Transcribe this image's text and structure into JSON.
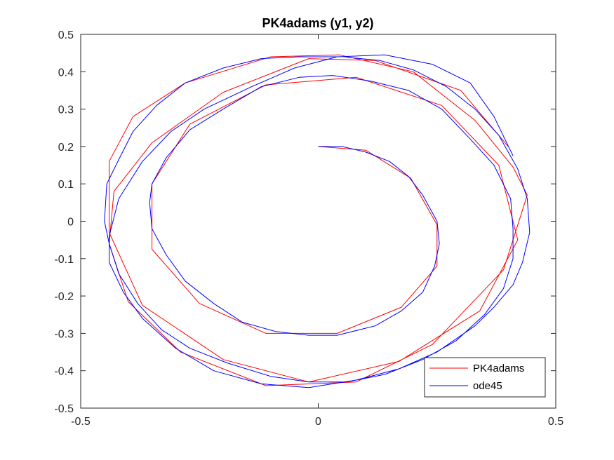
{
  "chart_data": {
    "type": "line",
    "title": "PK4adams (y1, y2)",
    "xlabel": "",
    "ylabel": "",
    "xlim": [
      -0.5,
      0.5
    ],
    "ylim": [
      -0.5,
      0.5
    ],
    "xticks": [
      -0.5,
      0,
      0.5
    ],
    "xtick_labels": [
      "-0.5",
      "0",
      "0.5"
    ],
    "yticks": [
      -0.5,
      -0.4,
      -0.3,
      -0.2,
      -0.1,
      0,
      0.1,
      0.2,
      0.3,
      0.4,
      0.5
    ],
    "ytick_labels": [
      "-0.5",
      "-0.4",
      "-0.3",
      "-0.2",
      "-0.1",
      "0",
      "0.1",
      "0.2",
      "0.3",
      "0.4",
      "0.5"
    ],
    "grid": false,
    "legend_position": "bottom-right",
    "series": [
      {
        "name": "PK4adams",
        "color": "#ff0000",
        "x": [
          0.0,
          0.1,
          0.195,
          0.25,
          0.25,
          0.175,
          0.04,
          -0.11,
          -0.25,
          -0.35,
          -0.35,
          -0.27,
          -0.11,
          0.08,
          0.26,
          0.38,
          0.42,
          0.34,
          0.17,
          -0.02,
          -0.2,
          -0.37,
          -0.44,
          -0.44,
          -0.39,
          -0.28,
          -0.1,
          0.045,
          0.2,
          0.33,
          0.41,
          0.44,
          0.39,
          0.24,
          0.08,
          -0.11,
          -0.29,
          -0.4,
          -0.44,
          -0.43,
          -0.35,
          -0.2,
          -0.02,
          0.12,
          0.3,
          0.4
        ],
        "y": [
          0.2,
          0.19,
          0.115,
          -0.01,
          -0.12,
          -0.23,
          -0.3,
          -0.3,
          -0.22,
          -0.075,
          0.1,
          0.26,
          0.365,
          0.385,
          0.31,
          0.15,
          -0.05,
          -0.24,
          -0.375,
          -0.43,
          -0.37,
          -0.225,
          -0.03,
          0.16,
          0.28,
          0.37,
          0.44,
          0.445,
          0.4,
          0.27,
          0.145,
          0.07,
          -0.13,
          -0.33,
          -0.43,
          -0.44,
          -0.35,
          -0.215,
          -0.06,
          0.08,
          0.21,
          0.345,
          0.435,
          0.43,
          0.35,
          0.2
        ]
      },
      {
        "name": "ode45",
        "color": "#0000ff",
        "x": [
          0.0,
          0.05,
          0.1,
          0.15,
          0.19,
          0.22,
          0.25,
          0.255,
          0.245,
          0.22,
          0.175,
          0.12,
          0.04,
          -0.02,
          -0.09,
          -0.16,
          -0.22,
          -0.28,
          -0.32,
          -0.35,
          -0.355,
          -0.35,
          -0.32,
          -0.27,
          -0.2,
          -0.12,
          -0.04,
          0.03,
          0.11,
          0.19,
          0.26,
          0.32,
          0.37,
          0.405,
          0.41,
          0.41,
          0.39,
          0.35,
          0.29,
          0.22,
          0.14,
          0.06,
          -0.02,
          -0.1,
          -0.19,
          -0.27,
          -0.33,
          -0.38,
          -0.42,
          -0.44,
          -0.45,
          -0.445,
          -0.42,
          -0.39,
          -0.34,
          -0.28,
          -0.2,
          -0.12,
          -0.04,
          0.05,
          0.13,
          0.2,
          0.27,
          0.33,
          0.38,
          0.42,
          0.44,
          0.445,
          0.43,
          0.41,
          0.37,
          0.33,
          0.25,
          0.17,
          0.08,
          -0.02,
          -0.12,
          -0.22,
          -0.3,
          -0.37,
          -0.41,
          -0.44,
          -0.44,
          -0.42,
          -0.37,
          -0.31,
          -0.24,
          -0.14,
          -0.05,
          0.04,
          0.14,
          0.24,
          0.32,
          0.37,
          0.41
        ],
        "y": [
          0.2,
          0.2,
          0.185,
          0.16,
          0.12,
          0.07,
          0.0,
          -0.06,
          -0.12,
          -0.19,
          -0.24,
          -0.28,
          -0.305,
          -0.305,
          -0.295,
          -0.27,
          -0.22,
          -0.16,
          -0.09,
          -0.02,
          0.05,
          0.1,
          0.17,
          0.245,
          0.3,
          0.36,
          0.385,
          0.39,
          0.375,
          0.35,
          0.3,
          0.22,
          0.15,
          0.06,
          -0.02,
          -0.1,
          -0.18,
          -0.25,
          -0.32,
          -0.37,
          -0.41,
          -0.43,
          -0.43,
          -0.415,
          -0.38,
          -0.34,
          -0.29,
          -0.22,
          -0.14,
          -0.06,
          0.0,
          0.1,
          0.165,
          0.24,
          0.31,
          0.37,
          0.41,
          0.435,
          0.44,
          0.44,
          0.43,
          0.405,
          0.36,
          0.3,
          0.23,
          0.14,
          0.06,
          -0.03,
          -0.11,
          -0.17,
          -0.23,
          -0.28,
          -0.35,
          -0.395,
          -0.425,
          -0.445,
          -0.435,
          -0.4,
          -0.34,
          -0.26,
          -0.19,
          -0.11,
          -0.04,
          0.06,
          0.16,
          0.24,
          0.3,
          0.36,
          0.41,
          0.44,
          0.445,
          0.42,
          0.37,
          0.28,
          0.175
        ]
      }
    ]
  }
}
